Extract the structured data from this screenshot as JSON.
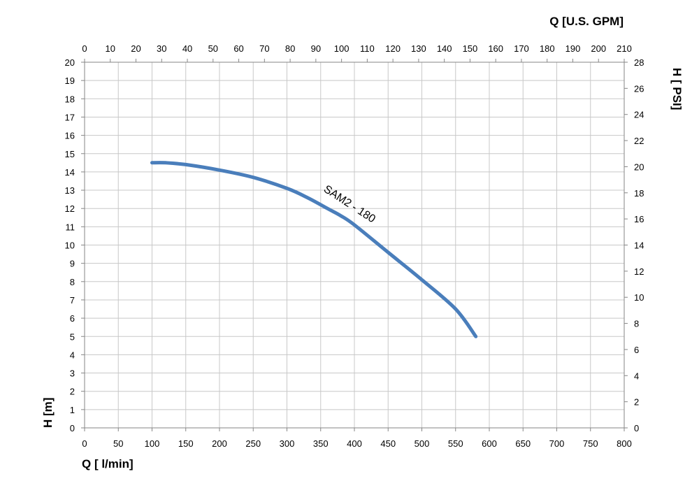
{
  "chart_data": {
    "type": "line",
    "title": "",
    "xlabel": "Q [ l/min]",
    "ylabel": "H [m]",
    "x2label": "Q  [U.S. GPM]",
    "y2label": "H [ PSI]",
    "xlim": [
      0,
      800
    ],
    "ylim": [
      0,
      20
    ],
    "x2lim": [
      0,
      210
    ],
    "y2lim": [
      0,
      28
    ],
    "x_ticks": [
      0,
      50,
      100,
      150,
      200,
      250,
      300,
      350,
      400,
      450,
      500,
      550,
      600,
      650,
      700,
      750,
      800
    ],
    "y_ticks": [
      0,
      1,
      2,
      3,
      4,
      5,
      6,
      7,
      8,
      9,
      10,
      11,
      12,
      13,
      14,
      15,
      16,
      17,
      18,
      19,
      20
    ],
    "x2_ticks": [
      0,
      10,
      20,
      30,
      40,
      50,
      60,
      70,
      80,
      90,
      100,
      110,
      120,
      130,
      140,
      150,
      160,
      170,
      180,
      190,
      200,
      210
    ],
    "y2_ticks": [
      0,
      2,
      4,
      6,
      8,
      10,
      12,
      14,
      16,
      18,
      20,
      22,
      24,
      26,
      28
    ],
    "grid": true,
    "series": [
      {
        "name": "SAM2 - 180",
        "color": "#4a7ebb",
        "x": [
          100,
          120,
          150,
          200,
          250,
          300,
          330,
          360,
          380,
          400,
          450,
          500,
          550,
          580
        ],
        "y": [
          14.5,
          14.5,
          14.4,
          14.1,
          13.7,
          13.1,
          12.6,
          12.0,
          11.6,
          11.1,
          9.6,
          8.1,
          6.5,
          5.0
        ]
      }
    ]
  }
}
